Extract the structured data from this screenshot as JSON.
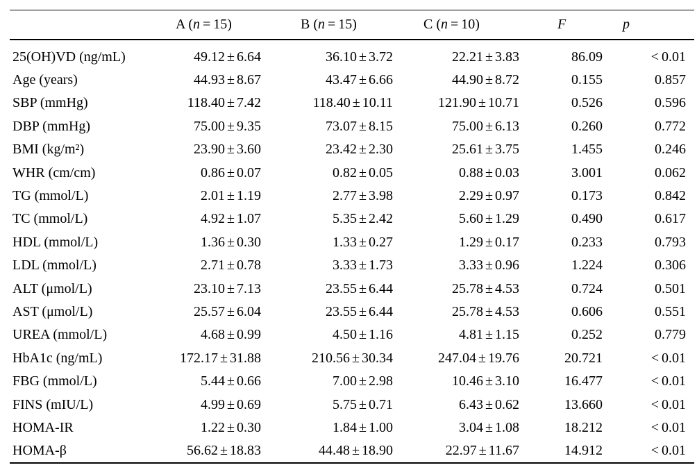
{
  "page": {
    "background": "#ffffff",
    "text_color": "#000000"
  },
  "table": {
    "pm_symbol": "±",
    "headers": {
      "label": "",
      "groups": [
        {
          "pre": "A (",
          "it": "n",
          "post": " = 15)"
        },
        {
          "pre": "B (",
          "it": "n",
          "post": " = 15)"
        },
        {
          "pre": "C (",
          "it": "n",
          "post": " = 10)"
        },
        {
          "pre": "",
          "it": "F",
          "post": ""
        },
        {
          "pre": "",
          "it": "p",
          "post": ""
        }
      ]
    },
    "rows": [
      {
        "label": "25(OH)VD (ng/mL)",
        "a": [
          "49.12",
          "6.64"
        ],
        "b": [
          "36.10",
          "3.72"
        ],
        "c": [
          "22.21",
          "3.83"
        ],
        "f": "86.09",
        "p": "< 0.01"
      },
      {
        "label": "Age (years)",
        "a": [
          "44.93",
          "8.67"
        ],
        "b": [
          "43.47",
          "6.66"
        ],
        "c": [
          "44.90",
          "8.72"
        ],
        "f": "0.155",
        "p": "0.857"
      },
      {
        "label": "SBP (mmHg)",
        "a": [
          "118.40",
          "7.42"
        ],
        "b": [
          "118.40",
          "10.11"
        ],
        "c": [
          "121.90",
          "10.71"
        ],
        "f": "0.526",
        "p": "0.596"
      },
      {
        "label": "DBP (mmHg)",
        "a": [
          "75.00",
          "9.35"
        ],
        "b": [
          "73.07",
          "8.15"
        ],
        "c": [
          "75.00",
          "6.13"
        ],
        "f": "0.260",
        "p": "0.772"
      },
      {
        "label": "BMI (kg/m²)",
        "a": [
          "23.90",
          "3.60"
        ],
        "b": [
          "23.42",
          "2.30"
        ],
        "c": [
          "25.61",
          "3.75"
        ],
        "f": "1.455",
        "p": "0.246"
      },
      {
        "label": "WHR (cm/cm)",
        "a": [
          "0.86",
          "0.07"
        ],
        "b": [
          "0.82",
          "0.05"
        ],
        "c": [
          "0.88",
          "0.03"
        ],
        "f": "3.001",
        "p": "0.062"
      },
      {
        "label": "TG (mmol/L)",
        "a": [
          "2.01",
          "1.19"
        ],
        "b": [
          "2.77",
          "3.98"
        ],
        "c": [
          "2.29",
          "0.97"
        ],
        "f": "0.173",
        "p": "0.842"
      },
      {
        "label": "TC (mmol/L)",
        "a": [
          "4.92",
          "1.07"
        ],
        "b": [
          "5.35",
          "2.42"
        ],
        "c": [
          "5.60",
          "1.29"
        ],
        "f": "0.490",
        "p": "0.617"
      },
      {
        "label": "HDL (mmol/L)",
        "a": [
          "1.36",
          "0.30"
        ],
        "b": [
          "1.33",
          "0.27"
        ],
        "c": [
          "1.29",
          "0.17"
        ],
        "f": "0.233",
        "p": "0.793"
      },
      {
        "label": "LDL (mmol/L)",
        "a": [
          "2.71",
          "0.78"
        ],
        "b": [
          "3.33",
          "1.73"
        ],
        "c": [
          "3.33",
          "0.96"
        ],
        "f": "1.224",
        "p": "0.306"
      },
      {
        "label": "ALT (μmol/L)",
        "a": [
          "23.10",
          "7.13"
        ],
        "b": [
          "23.55",
          "6.44"
        ],
        "c": [
          "25.78",
          "4.53"
        ],
        "f": "0.724",
        "p": "0.501"
      },
      {
        "label": "AST (μmol/L)",
        "a": [
          "25.57",
          "6.04"
        ],
        "b": [
          "23.55",
          "6.44"
        ],
        "c": [
          "25.78",
          "4.53"
        ],
        "f": "0.606",
        "p": "0.551"
      },
      {
        "label": "UREA (mmol/L)",
        "a": [
          "4.68",
          "0.99"
        ],
        "b": [
          "4.50",
          "1.16"
        ],
        "c": [
          "4.81",
          "1.15"
        ],
        "f": "0.252",
        "p": "0.779"
      },
      {
        "label": "HbA1c (ng/mL)",
        "a": [
          "172.17",
          "31.88"
        ],
        "b": [
          "210.56",
          "30.34"
        ],
        "c": [
          "247.04",
          "19.76"
        ],
        "f": "20.721",
        "p": "< 0.01"
      },
      {
        "label": "FBG (mmol/L)",
        "a": [
          "5.44",
          "0.66"
        ],
        "b": [
          "7.00",
          "2.98"
        ],
        "c": [
          "10.46",
          "3.10"
        ],
        "f": "16.477",
        "p": "< 0.01"
      },
      {
        "label": "FINS (mIU/L)",
        "a": [
          "4.99",
          "0.69"
        ],
        "b": [
          "5.75",
          "0.71"
        ],
        "c": [
          "6.43",
          "0.62"
        ],
        "f": "13.660",
        "p": "< 0.01"
      },
      {
        "label": "HOMA-IR",
        "a": [
          "1.22",
          "0.30"
        ],
        "b": [
          "1.84",
          "1.00"
        ],
        "c": [
          "3.04",
          "1.08"
        ],
        "f": "18.212",
        "p": "< 0.01"
      },
      {
        "label": "HOMA-β",
        "a": [
          "56.62",
          "18.83"
        ],
        "b": [
          "44.48",
          "18.90"
        ],
        "c": [
          "22.97",
          "11.67"
        ],
        "f": "14.912",
        "p": "< 0.01"
      }
    ]
  }
}
